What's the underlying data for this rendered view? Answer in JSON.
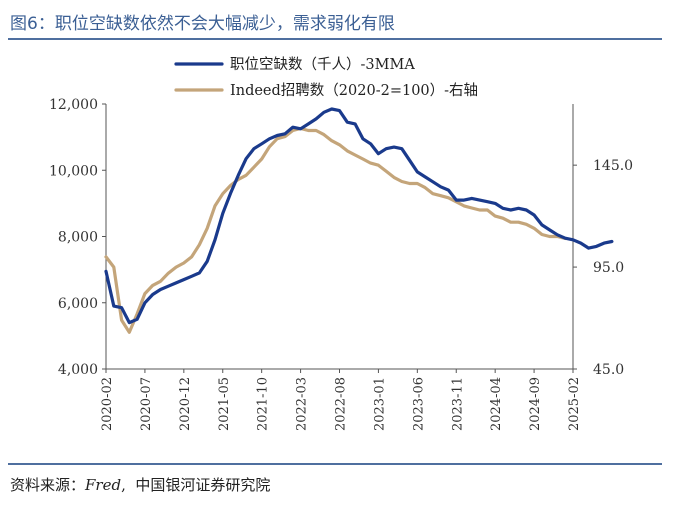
{
  "header": {
    "title": "图6：职位空缺数依然不会大幅减少，需求弱化有限"
  },
  "footer": {
    "source_label": "资料来源：",
    "source_name": "Fred",
    "source_org": "中国银河证券研究院"
  },
  "colors": {
    "series1": "#1a3a8c",
    "series2": "#c4a57a",
    "title": "#3b5f94",
    "axis": "#555555"
  },
  "chart_data": {
    "type": "line",
    "title": "",
    "xlabel": "",
    "ylabel": "",
    "x_ticks": [
      "2020-02",
      "2020-07",
      "2020-12",
      "2021-05",
      "2021-10",
      "2022-03",
      "2022-08",
      "2023-01",
      "2023-06",
      "2023-11",
      "2024-04",
      "2024-09",
      "2025-02"
    ],
    "ylim_left": [
      4000,
      12000
    ],
    "y_ticks_left": [
      "4,000",
      "6,000",
      "8,000",
      "10,000",
      "12,000"
    ],
    "ylim_right": [
      45,
      175
    ],
    "y_ticks_right": [
      "45.0",
      "95.0",
      "145.0"
    ],
    "series": [
      {
        "name": "职位空缺数（千人）-3MMA",
        "axis": "left",
        "start": "2020-02",
        "values": [
          6950,
          5900,
          5850,
          5400,
          5500,
          6000,
          6250,
          6400,
          6500,
          6600,
          6700,
          6800,
          6900,
          7250,
          7900,
          8700,
          9300,
          9850,
          10350,
          10650,
          10800,
          10950,
          11050,
          11100,
          11300,
          11250,
          11400,
          11550,
          11750,
          11850,
          11800,
          11450,
          11400,
          10950,
          10800,
          10500,
          10650,
          10700,
          10650,
          10300,
          9950,
          9800,
          9650,
          9500,
          9400,
          9100,
          9100,
          9150,
          9100,
          9050,
          9000,
          8850,
          8800,
          8850,
          8800,
          8650,
          8350,
          8200,
          8050,
          7950,
          7900,
          7800,
          7650,
          7700,
          7800,
          7850
        ]
      },
      {
        "name": "Indeed招聘数（2020-2=100）-右轴",
        "axis": "right",
        "start": "2020-02",
        "values": [
          100,
          95,
          69,
          63,
          72,
          82,
          86,
          88,
          92,
          95,
          97,
          100,
          106,
          114,
          125,
          131,
          135,
          138,
          140,
          144,
          148,
          154,
          158,
          159,
          162,
          163,
          162,
          162,
          160,
          157,
          155,
          152,
          150,
          148,
          146,
          145,
          142,
          139,
          137,
          136,
          136,
          134,
          131,
          130,
          129,
          127,
          125,
          124,
          123,
          123,
          120,
          119,
          117,
          117,
          116,
          114,
          111,
          110,
          110,
          109
        ]
      }
    ]
  }
}
